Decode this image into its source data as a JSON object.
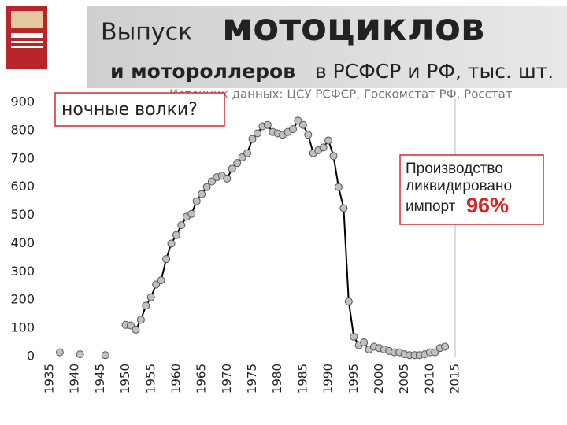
{
  "chart_data": {
    "type": "line",
    "title": "Выпуск",
    "title_emphasis": "мотоциклов",
    "subtitle_emphasis": "и мотороллеров",
    "subtitle": "в РСФСР и РФ, тыс. шт.",
    "source": "Источник данных: ЦСУ РСФСР, Госкомстат РФ, Росстат",
    "annotation": "ночные волки?",
    "note_lines": [
      "Производство",
      "ликвидировано",
      "импорт"
    ],
    "note_value": "96%",
    "x": [
      1937,
      1939,
      1941,
      1944,
      1946,
      1948,
      1950,
      1951,
      1952,
      1953,
      1954,
      1955,
      1956,
      1957,
      1958,
      1959,
      1960,
      1961,
      1962,
      1963,
      1964,
      1965,
      1966,
      1967,
      1968,
      1969,
      1970,
      1971,
      1972,
      1973,
      1974,
      1975,
      1976,
      1977,
      1978,
      1979,
      1980,
      1981,
      1982,
      1983,
      1984,
      1985,
      1986,
      1987,
      1988,
      1989,
      1990,
      1991,
      1992,
      1993,
      1994,
      1995,
      1996,
      1997,
      1998,
      1999,
      2000,
      2001,
      2002,
      2003,
      2004,
      2005,
      2006,
      2007,
      2008,
      2009,
      2010,
      2011,
      2012,
      2013
    ],
    "values": [
      15,
      null,
      8,
      null,
      5,
      null,
      112,
      110,
      95,
      130,
      180,
      210,
      255,
      270,
      345,
      400,
      430,
      465,
      495,
      505,
      550,
      575,
      600,
      620,
      635,
      640,
      630,
      665,
      685,
      705,
      720,
      770,
      790,
      815,
      820,
      795,
      790,
      785,
      795,
      805,
      835,
      820,
      785,
      720,
      730,
      740,
      765,
      710,
      600,
      525,
      195,
      70,
      40,
      50,
      25,
      35,
      30,
      25,
      20,
      15,
      15,
      8,
      5,
      5,
      5,
      8,
      15,
      15,
      30,
      35
    ],
    "color": "#000000",
    "marker_color": "#c0c0c0",
    "xlim": [
      1935,
      2015
    ],
    "xticks": [
      1935,
      1940,
      1945,
      1950,
      1955,
      1960,
      1965,
      1970,
      1975,
      1980,
      1985,
      1990,
      1995,
      2000,
      2005,
      2010,
      2015
    ],
    "ylim": [
      0,
      900
    ],
    "yticks": [
      0,
      100,
      200,
      300,
      400,
      500,
      600,
      700,
      800,
      900
    ],
    "grid": false
  }
}
